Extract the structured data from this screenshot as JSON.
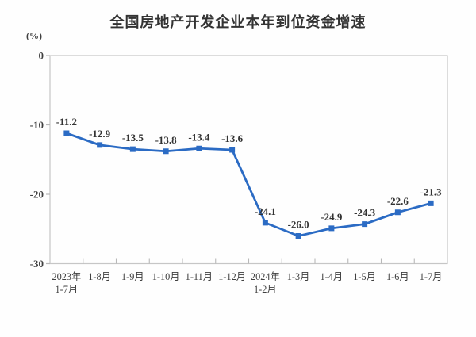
{
  "chart_data": {
    "type": "line",
    "title": "全国房地产开发企业本年到位资金增速",
    "unit_label": "(%)",
    "categories": [
      "2023年\n1-7月",
      "1-8月",
      "1-9月",
      "1-10月",
      "1-11月",
      "1-12月",
      "2024年\n1-2月",
      "1-3月",
      "1-4月",
      "1-5月",
      "1-6月",
      "1-7月"
    ],
    "values": [
      -11.2,
      -12.9,
      -13.5,
      -13.8,
      -13.4,
      -13.6,
      -24.1,
      -26.0,
      -24.9,
      -24.3,
      -22.6,
      -21.3
    ],
    "point_labels": [
      "-11.2",
      "-12.9",
      "-13.5",
      "-13.8",
      "-13.4",
      "-13.6",
      "-24.1",
      "-26.0",
      "-24.9",
      "-24.3",
      "-22.6",
      "-21.3"
    ],
    "ylim": [
      -30,
      0
    ],
    "yticks": [
      0,
      -10,
      -20,
      -30
    ],
    "ytick_labels": [
      "0",
      "-10",
      "-20",
      "-30"
    ],
    "grid": false,
    "legend": "none",
    "colors": {
      "line": "#2B6BC4",
      "marker": "#2B6BC4",
      "axis": "#C6C6C6",
      "tick": "#B8B8B8",
      "axis_text": "#404040",
      "label_text": "#333333",
      "title_text": "#333333",
      "background": "#FEFEFE"
    }
  }
}
